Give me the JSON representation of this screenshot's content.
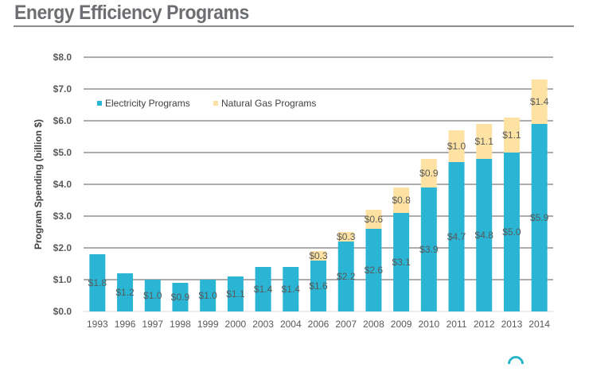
{
  "page": {
    "title": "Energy Efficiency Programs"
  },
  "colors": {
    "electricity": "#29b5d3",
    "natural_gas": "#fde2a3",
    "grid": "#595959",
    "text": "#595959"
  },
  "chart_data": {
    "type": "bar",
    "stacked": true,
    "title": "Energy Efficiency Programs",
    "xlabel": "",
    "ylabel": "Program Spending (billion $)",
    "ylim": [
      0,
      8
    ],
    "yticks": [
      0,
      1,
      2,
      3,
      4,
      5,
      6,
      7,
      8
    ],
    "ytick_labels": [
      "$0.0",
      "$1.0",
      "$2.0",
      "$3.0",
      "$4.0",
      "$5.0",
      "$6.0",
      "$7.0",
      "$8.0"
    ],
    "grid": true,
    "legend_position": "top-left",
    "categories": [
      "1993",
      "1996",
      "1997",
      "1998",
      "1999",
      "2000",
      "2003",
      "2004",
      "2006",
      "2007",
      "2008",
      "2009",
      "2010",
      "2011",
      "2012",
      "2013",
      "2014"
    ],
    "series": [
      {
        "name": "Electricity Programs",
        "color": "#29b5d3",
        "values": [
          1.8,
          1.2,
          1.0,
          0.9,
          1.0,
          1.1,
          1.4,
          1.4,
          1.6,
          2.2,
          2.6,
          3.1,
          3.9,
          4.7,
          4.8,
          5.0,
          5.9
        ],
        "labels": [
          "$1.8",
          "$1.2",
          "$1.0",
          "$0.9",
          "$1.0",
          "$1.1",
          "$1.4",
          "$1.4",
          "$1.6",
          "$2.2",
          "$2.6",
          "$3.1",
          "$3.9",
          "$4.7",
          "$4.8",
          "$5.0",
          "$5.9"
        ]
      },
      {
        "name": "Natural Gas Programs",
        "color": "#fde2a3",
        "values": [
          0,
          0,
          0,
          0,
          0,
          0,
          0,
          0,
          0.3,
          0.3,
          0.6,
          0.8,
          0.9,
          1.0,
          1.1,
          1.1,
          1.4
        ],
        "labels": [
          "",
          "",
          "",
          "",
          "",
          "",
          "",
          "",
          "$0.3",
          "$0.3",
          "$0.6",
          "$0.8",
          "$0.9",
          "$1.0",
          "$1.1",
          "$1.1",
          "$1.4"
        ]
      }
    ]
  }
}
